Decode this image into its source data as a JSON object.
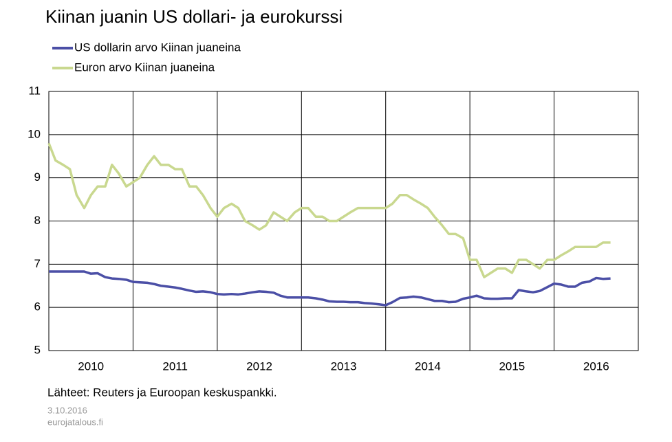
{
  "chart_data": {
    "type": "line",
    "title": "Kiinan juanin US dollari- ja eurokurssi",
    "x": [
      2010.0,
      2010.08,
      2010.17,
      2010.25,
      2010.33,
      2010.42,
      2010.5,
      2010.58,
      2010.67,
      2010.75,
      2010.83,
      2010.92,
      2011.0,
      2011.08,
      2011.17,
      2011.25,
      2011.33,
      2011.42,
      2011.5,
      2011.58,
      2011.67,
      2011.75,
      2011.83,
      2011.92,
      2012.0,
      2012.08,
      2012.17,
      2012.25,
      2012.33,
      2012.42,
      2012.5,
      2012.58,
      2012.67,
      2012.75,
      2012.83,
      2012.92,
      2013.0,
      2013.08,
      2013.17,
      2013.25,
      2013.33,
      2013.42,
      2013.5,
      2013.58,
      2013.67,
      2013.75,
      2013.83,
      2013.92,
      2014.0,
      2014.08,
      2014.17,
      2014.25,
      2014.33,
      2014.42,
      2014.5,
      2014.58,
      2014.67,
      2014.75,
      2014.83,
      2014.92,
      2015.0,
      2015.08,
      2015.17,
      2015.25,
      2015.33,
      2015.42,
      2015.5,
      2015.58,
      2015.67,
      2015.75,
      2015.83,
      2015.92,
      2016.0,
      2016.08,
      2016.17,
      2016.25,
      2016.33,
      2016.42,
      2016.5,
      2016.58,
      2016.67
    ],
    "series": [
      {
        "name": "US dollarin arvo Kiinan juaneina",
        "color": "#4b4fa6",
        "values": [
          6.83,
          6.83,
          6.83,
          6.83,
          6.83,
          6.83,
          6.78,
          6.79,
          6.7,
          6.67,
          6.66,
          6.64,
          6.59,
          6.58,
          6.57,
          6.54,
          6.5,
          6.48,
          6.46,
          6.43,
          6.39,
          6.36,
          6.37,
          6.35,
          6.31,
          6.3,
          6.31,
          6.3,
          6.32,
          6.35,
          6.37,
          6.36,
          6.34,
          6.27,
          6.23,
          6.23,
          6.23,
          6.23,
          6.21,
          6.18,
          6.14,
          6.13,
          6.13,
          6.12,
          6.12,
          6.1,
          6.09,
          6.07,
          6.05,
          6.12,
          6.22,
          6.23,
          6.25,
          6.23,
          6.19,
          6.15,
          6.15,
          6.12,
          6.13,
          6.2,
          6.23,
          6.27,
          6.21,
          6.2,
          6.2,
          6.21,
          6.21,
          6.4,
          6.37,
          6.35,
          6.38,
          6.47,
          6.55,
          6.53,
          6.48,
          6.48,
          6.57,
          6.6,
          6.68,
          6.66,
          6.67
        ]
      },
      {
        "name": "Euron arvo Kiinan juaneina",
        "color": "#c9d88f",
        "values": [
          9.8,
          9.4,
          9.3,
          9.2,
          8.6,
          8.3,
          8.6,
          8.8,
          8.8,
          9.3,
          9.1,
          8.8,
          8.9,
          9.0,
          9.3,
          9.5,
          9.3,
          9.3,
          9.2,
          9.2,
          8.8,
          8.8,
          8.6,
          8.3,
          8.1,
          8.3,
          8.4,
          8.3,
          8.0,
          7.9,
          7.8,
          7.9,
          8.2,
          8.1,
          8.0,
          8.2,
          8.3,
          8.3,
          8.1,
          8.1,
          8.0,
          8.0,
          8.1,
          8.2,
          8.3,
          8.3,
          8.3,
          8.3,
          8.3,
          8.4,
          8.6,
          8.6,
          8.5,
          8.4,
          8.3,
          8.1,
          7.9,
          7.7,
          7.7,
          7.6,
          7.1,
          7.1,
          6.7,
          6.8,
          6.9,
          6.9,
          6.8,
          7.1,
          7.1,
          7.0,
          6.9,
          7.1,
          7.1,
          7.2,
          7.3,
          7.4,
          7.4,
          7.4,
          7.4,
          7.5,
          7.5
        ]
      }
    ],
    "xlim": [
      2010,
      2017
    ],
    "xticks": [
      2010,
      2011,
      2012,
      2013,
      2014,
      2015,
      2016
    ],
    "ylim": [
      5,
      11
    ],
    "yticks": [
      5,
      6,
      7,
      8,
      9,
      10,
      11
    ],
    "grid": true,
    "annotations": [
      "Lähteet:  Reuters ja Euroopan keskuspankki.",
      "3.10.2016",
      "eurojatalous.fi"
    ]
  }
}
